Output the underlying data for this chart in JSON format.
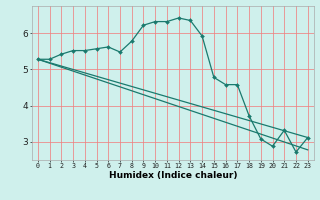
{
  "xlabel": "Humidex (Indice chaleur)",
  "bg_color": "#cff0ec",
  "grid_color": "#f08080",
  "line_color": "#1a7a6e",
  "line1_x": [
    0,
    1,
    2,
    3,
    4,
    5,
    6,
    7,
    8,
    9,
    10,
    11,
    12,
    13,
    14,
    15,
    16,
    17,
    18,
    19,
    20,
    21,
    22,
    23
  ],
  "line1_y": [
    5.28,
    5.28,
    5.42,
    5.52,
    5.52,
    5.57,
    5.62,
    5.48,
    5.78,
    6.22,
    6.32,
    6.32,
    6.42,
    6.35,
    5.92,
    4.78,
    4.58,
    4.58,
    3.72,
    3.08,
    2.88,
    3.32,
    2.72,
    3.12
  ],
  "line2_x": [
    0,
    23
  ],
  "line2_y": [
    5.28,
    3.12
  ],
  "line3_x": [
    0,
    23
  ],
  "line3_y": [
    5.28,
    2.78
  ],
  "xlim": [
    -0.5,
    23.5
  ],
  "ylim": [
    2.5,
    6.75
  ],
  "yticks": [
    3,
    4,
    5,
    6
  ],
  "xticks": [
    0,
    1,
    2,
    3,
    4,
    5,
    6,
    7,
    8,
    9,
    10,
    11,
    12,
    13,
    14,
    15,
    16,
    17,
    18,
    19,
    20,
    21,
    22,
    23
  ]
}
